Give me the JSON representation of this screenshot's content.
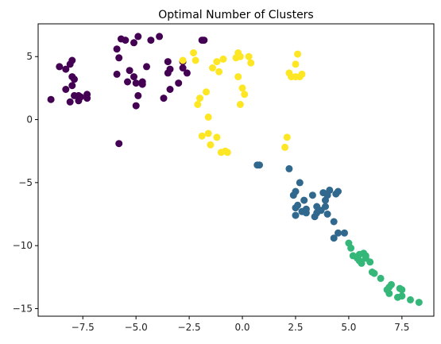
{
  "chart_data": {
    "type": "scatter",
    "title": "Optimal Number of Clusters",
    "xlabel": "",
    "ylabel": "",
    "xlim": [
      -9.6,
      9.0
    ],
    "ylim": [
      -15.6,
      7.6
    ],
    "xticks": [
      -7.5,
      -5.0,
      -2.5,
      0.0,
      2.5,
      5.0,
      7.5
    ],
    "xtick_labels": [
      "−7.5",
      "−5.0",
      "−2.5",
      "0.0",
      "2.5",
      "5.0",
      "7.5"
    ],
    "yticks": [
      5,
      0,
      -5,
      -10,
      -15
    ],
    "ytick_labels": [
      "5",
      "0",
      "−5",
      "−10",
      "−15"
    ],
    "grid": false,
    "legend": "none",
    "colormap": "viridis",
    "series": [
      {
        "color": "#440154",
        "points": [
          [
            -9.0,
            1.6
          ],
          [
            -8.6,
            4.2
          ],
          [
            -8.3,
            4.0
          ],
          [
            -8.3,
            2.4
          ],
          [
            -8.1,
            4.4
          ],
          [
            -8.1,
            1.4
          ],
          [
            -8.0,
            4.7
          ],
          [
            -8.0,
            3.4
          ],
          [
            -8.0,
            2.7
          ],
          [
            -7.9,
            1.9
          ],
          [
            -7.9,
            3.2
          ],
          [
            -7.7,
            1.9
          ],
          [
            -7.7,
            1.5
          ],
          [
            -7.6,
            1.8
          ],
          [
            -7.3,
            2.0
          ],
          [
            -7.3,
            1.7
          ],
          [
            -5.9,
            5.6
          ],
          [
            -5.9,
            3.6
          ],
          [
            -5.8,
            4.9
          ],
          [
            -5.7,
            6.4
          ],
          [
            -5.5,
            6.3
          ],
          [
            -5.4,
            3.0
          ],
          [
            -5.3,
            3.9
          ],
          [
            -5.1,
            6.1
          ],
          [
            -5.1,
            3.4
          ],
          [
            -5.0,
            2.9
          ],
          [
            -5.0,
            1.1
          ],
          [
            -4.9,
            1.9
          ],
          [
            -4.9,
            6.6
          ],
          [
            -4.7,
            3.0
          ],
          [
            -4.7,
            2.8
          ],
          [
            -4.5,
            4.2
          ],
          [
            -4.3,
            6.3
          ],
          [
            -3.9,
            6.6
          ],
          [
            -3.7,
            1.7
          ],
          [
            -3.5,
            3.7
          ],
          [
            -3.5,
            4.6
          ],
          [
            -3.4,
            2.4
          ],
          [
            -3.4,
            4.0
          ],
          [
            -3.0,
            2.9
          ],
          [
            -2.8,
            4.6
          ],
          [
            -2.8,
            4.1
          ],
          [
            -2.6,
            3.7
          ],
          [
            -1.9,
            6.3
          ],
          [
            -1.8,
            6.3
          ],
          [
            -5.8,
            -1.9
          ]
        ]
      },
      {
        "color": "#fde725",
        "points": [
          [
            -2.8,
            4.7
          ],
          [
            -2.3,
            5.3
          ],
          [
            -2.2,
            4.7
          ],
          [
            -2.1,
            1.2
          ],
          [
            -2.0,
            1.7
          ],
          [
            -1.7,
            2.2
          ],
          [
            -1.6,
            0.2
          ],
          [
            -1.4,
            4.1
          ],
          [
            -1.2,
            4.6
          ],
          [
            -1.1,
            3.8
          ],
          [
            -0.9,
            4.8
          ],
          [
            -0.2,
            5.3
          ],
          [
            -0.2,
            3.4
          ],
          [
            -0.1,
            5.0
          ],
          [
            -0.1,
            1.2
          ],
          [
            0.0,
            2.5
          ],
          [
            0.1,
            2.0
          ],
          [
            0.3,
            5.0
          ],
          [
            0.4,
            4.5
          ],
          [
            -0.3,
            4.9
          ],
          [
            2.0,
            -2.2
          ],
          [
            2.1,
            -1.4
          ],
          [
            2.2,
            3.7
          ],
          [
            2.3,
            3.4
          ],
          [
            2.5,
            4.4
          ],
          [
            2.5,
            3.4
          ],
          [
            2.6,
            5.2
          ],
          [
            2.7,
            3.4
          ],
          [
            2.8,
            3.6
          ],
          [
            -1.6,
            -1.1
          ],
          [
            -1.5,
            -2.0
          ],
          [
            -1.2,
            -1.4
          ],
          [
            -1.0,
            -2.6
          ],
          [
            -0.8,
            -2.5
          ],
          [
            -0.7,
            -2.6
          ],
          [
            -1.9,
            -1.3
          ]
        ]
      },
      {
        "color": "#31688e",
        "points": [
          [
            0.7,
            -3.6
          ],
          [
            0.8,
            -3.6
          ],
          [
            2.2,
            -3.9
          ],
          [
            2.4,
            -6.0
          ],
          [
            2.5,
            -7.0
          ],
          [
            2.5,
            -5.7
          ],
          [
            2.5,
            -7.6
          ],
          [
            2.7,
            -5.0
          ],
          [
            2.8,
            -7.3
          ],
          [
            2.9,
            -6.4
          ],
          [
            3.0,
            -7.4
          ],
          [
            3.0,
            -7.1
          ],
          [
            3.3,
            -6.0
          ],
          [
            3.4,
            -7.7
          ],
          [
            3.5,
            -6.9
          ],
          [
            3.5,
            -7.4
          ],
          [
            3.8,
            -5.8
          ],
          [
            3.9,
            -6.4
          ],
          [
            3.9,
            -6.9
          ],
          [
            4.0,
            -7.5
          ],
          [
            4.0,
            -6.0
          ],
          [
            4.1,
            -5.6
          ],
          [
            4.3,
            -8.1
          ],
          [
            4.4,
            -5.9
          ],
          [
            4.5,
            -5.7
          ],
          [
            4.5,
            -9.0
          ],
          [
            4.3,
            -9.4
          ],
          [
            4.8,
            -9.0
          ],
          [
            3.7,
            -7.2
          ],
          [
            2.6,
            -6.8
          ]
        ]
      },
      {
        "color": "#35b779",
        "points": [
          [
            5.0,
            -9.8
          ],
          [
            5.1,
            -10.2
          ],
          [
            5.2,
            -10.8
          ],
          [
            5.4,
            -11.0
          ],
          [
            5.5,
            -11.2
          ],
          [
            5.6,
            -11.4
          ],
          [
            5.7,
            -10.6
          ],
          [
            5.8,
            -10.8
          ],
          [
            6.0,
            -11.3
          ],
          [
            6.1,
            -12.1
          ],
          [
            6.2,
            -12.2
          ],
          [
            6.5,
            -12.6
          ],
          [
            6.8,
            -13.5
          ],
          [
            6.9,
            -13.8
          ],
          [
            7.0,
            -13.1
          ],
          [
            7.3,
            -14.1
          ],
          [
            7.4,
            -13.4
          ],
          [
            7.5,
            -13.5
          ],
          [
            7.5,
            -14.0
          ],
          [
            7.9,
            -14.3
          ],
          [
            8.3,
            -14.5
          ],
          [
            5.5,
            -10.7
          ],
          [
            5.8,
            -11.0
          ],
          [
            6.9,
            -13.3
          ]
        ]
      }
    ]
  }
}
